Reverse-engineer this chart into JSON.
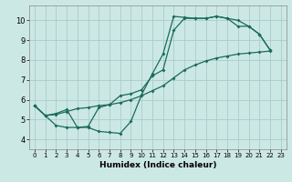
{
  "xlabel": "Humidex (Indice chaleur)",
  "bg_color": "#cce8e4",
  "grid_color": "#aaccc8",
  "line_color": "#1a6b5a",
  "xlim": [
    -0.5,
    23.5
  ],
  "ylim": [
    3.5,
    10.75
  ],
  "xticks": [
    0,
    1,
    2,
    3,
    4,
    5,
    6,
    7,
    8,
    9,
    10,
    11,
    12,
    13,
    14,
    15,
    16,
    17,
    18,
    19,
    20,
    21,
    22,
    23
  ],
  "yticks": [
    4,
    5,
    6,
    7,
    8,
    9,
    10
  ],
  "line1_x": [
    0,
    1,
    2,
    3,
    4,
    5,
    6,
    7,
    8,
    9,
    10,
    11,
    12,
    13,
    14,
    15,
    16,
    17,
    18,
    19,
    20,
    21,
    22
  ],
  "line1_y": [
    5.7,
    5.2,
    4.7,
    4.6,
    4.6,
    4.6,
    4.4,
    4.35,
    4.3,
    4.9,
    6.25,
    7.3,
    8.3,
    10.2,
    10.15,
    10.1,
    10.1,
    10.2,
    10.1,
    10.0,
    9.7,
    9.3,
    8.5
  ],
  "line2_x": [
    0,
    1,
    2,
    3,
    4,
    5,
    6,
    7,
    8,
    9,
    10,
    11,
    12,
    13,
    14,
    15,
    16,
    17,
    18,
    19,
    20,
    21,
    22
  ],
  "line2_y": [
    5.7,
    5.2,
    5.25,
    5.4,
    5.55,
    5.6,
    5.7,
    5.75,
    5.85,
    6.0,
    6.2,
    6.45,
    6.7,
    7.1,
    7.5,
    7.75,
    7.95,
    8.1,
    8.2,
    8.3,
    8.35,
    8.4,
    8.45
  ],
  "line3_x": [
    0,
    1,
    2,
    3,
    4,
    5,
    6,
    7,
    8,
    9,
    10,
    11,
    12,
    13,
    14,
    15,
    16,
    17,
    18,
    19,
    20,
    21,
    22
  ],
  "line3_y": [
    5.7,
    5.2,
    5.3,
    5.5,
    4.6,
    4.65,
    5.6,
    5.75,
    6.2,
    6.3,
    6.5,
    7.2,
    7.5,
    9.5,
    10.1,
    10.1,
    10.1,
    10.2,
    10.1,
    9.7,
    9.7,
    9.3,
    8.5
  ]
}
